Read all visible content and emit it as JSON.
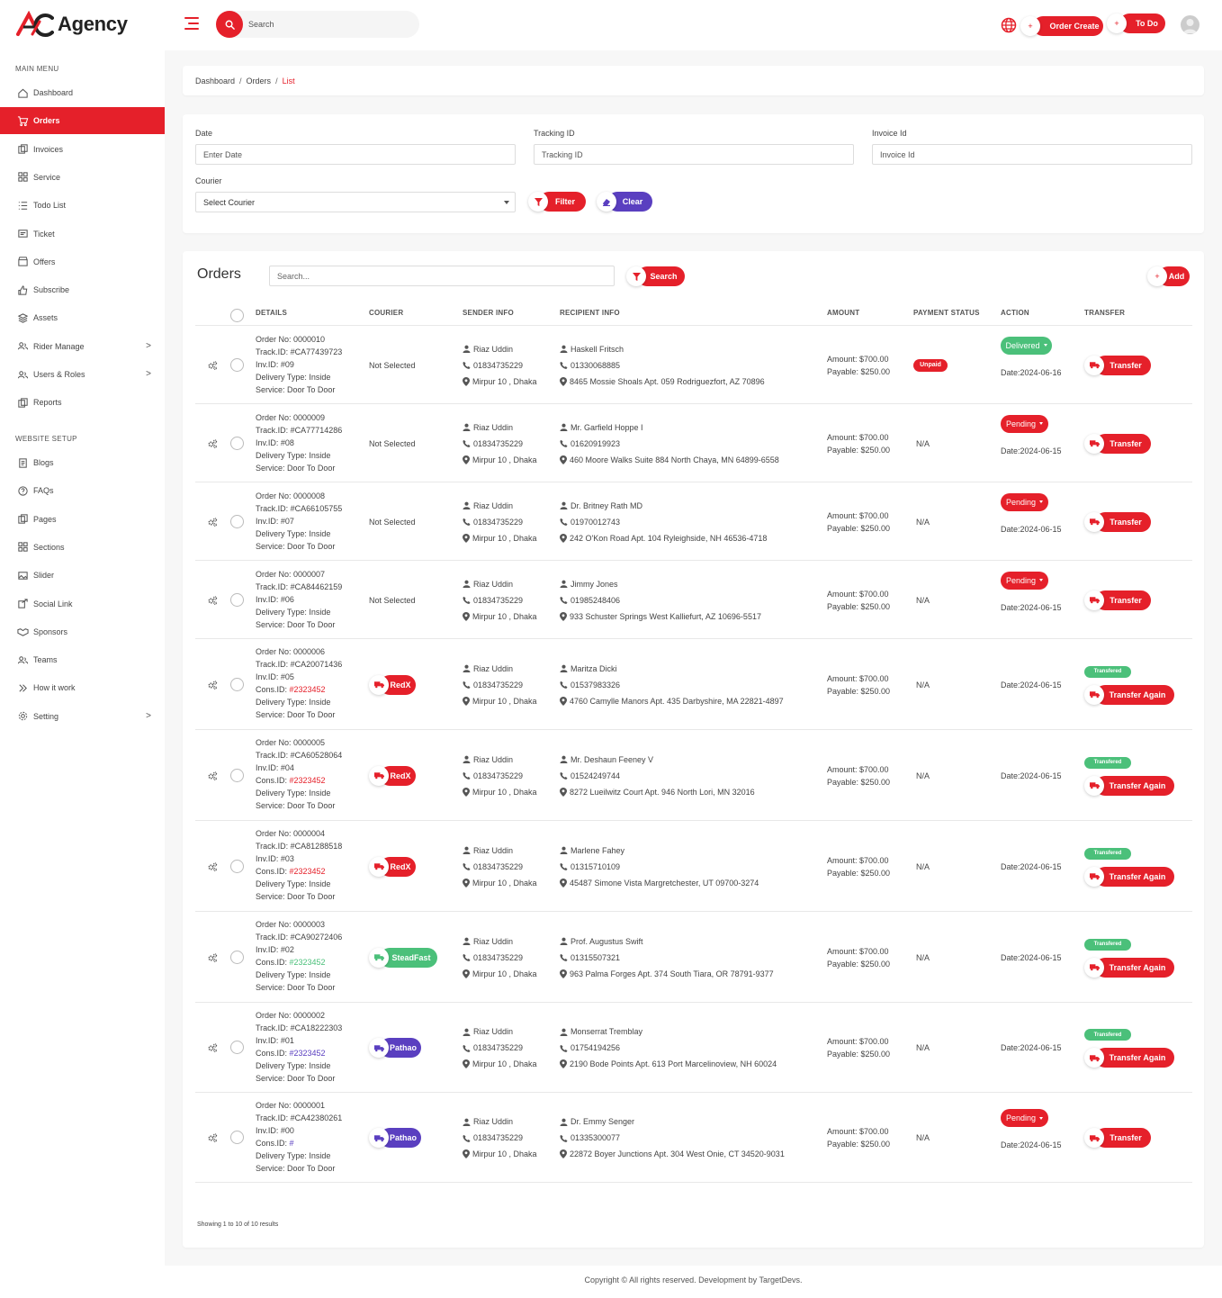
{
  "brand": {
    "name": "Agency"
  },
  "header": {
    "search_placeholder": "Search",
    "order_create_label": "Order Create",
    "todo_label": "To Do",
    "plus": "+"
  },
  "colors": {
    "accent": "#e5202a",
    "green": "#4bc07a",
    "purple": "#5a3fc0"
  },
  "sidebar": {
    "main_menu_label": "MAIN MENU",
    "website_setup_label": "WEBSITE SETUP",
    "main_items": [
      {
        "label": "Dashboard",
        "icon": "home-icon"
      },
      {
        "label": "Orders",
        "icon": "cart-icon",
        "active": true
      },
      {
        "label": "Invoices",
        "icon": "invoice-icon"
      },
      {
        "label": "Service",
        "icon": "grid-icon"
      },
      {
        "label": "Todo List",
        "icon": "list-icon"
      },
      {
        "label": "Ticket",
        "icon": "ticket-icon"
      },
      {
        "label": "Offers",
        "icon": "store-icon"
      },
      {
        "label": "Subscribe",
        "icon": "thumbs-up-icon"
      },
      {
        "label": "Assets",
        "icon": "layers-icon"
      },
      {
        "label": "Rider Manage",
        "icon": "users-icon",
        "chevron": ">"
      },
      {
        "label": "Users & Roles",
        "icon": "users-icon",
        "chevron": ">"
      },
      {
        "label": "Reports",
        "icon": "report-icon"
      }
    ],
    "setup_items": [
      {
        "label": "Blogs",
        "icon": "document-icon"
      },
      {
        "label": "FAQs",
        "icon": "question-icon"
      },
      {
        "label": "Pages",
        "icon": "pages-icon"
      },
      {
        "label": "Sections",
        "icon": "grid-icon"
      },
      {
        "label": "Slider",
        "icon": "image-icon"
      },
      {
        "label": "Social Link",
        "icon": "share-icon"
      },
      {
        "label": "Sponsors",
        "icon": "handshake-icon"
      },
      {
        "label": "Teams",
        "icon": "users-icon"
      },
      {
        "label": "How it work",
        "icon": "double-chevron-icon"
      },
      {
        "label": "Setting",
        "icon": "gear-icon",
        "chevron": ">"
      }
    ]
  },
  "breadcrumb": {
    "items": [
      "Dashboard",
      "Orders",
      "List"
    ],
    "sep": "/"
  },
  "filters": {
    "date_label": "Date",
    "date_placeholder": "Enter Date",
    "tracking_label": "Tracking ID",
    "tracking_placeholder": "Tracking ID",
    "invoice_label": "Invoice Id",
    "invoice_placeholder": "Invoice Id",
    "courier_label": "Courier",
    "courier_value": "Select Courier",
    "filter_label": "Filter",
    "clear_label": "Clear"
  },
  "orders": {
    "title": "Orders",
    "search_placeholder": "Search...",
    "search_label": "Search",
    "add_label": "Add",
    "columns": [
      "DETAILS",
      "COURIER",
      "SENDER INFO",
      "RECIPIENT INFO",
      "AMOUNT",
      "PAYMENT STATUS",
      "ACTION",
      "TRANSFER"
    ],
    "rows": [
      {
        "order": "Order No: 0000010",
        "track": "Track.ID: #CA77439723",
        "inv": "Inv.ID: #09",
        "cons": null,
        "cons_val": null,
        "delivery": "Delivery Type: Inside",
        "service": "Service: Door To Door",
        "courier": "Not Selected",
        "courier_kind": "none",
        "sender": "Riaz Uddin",
        "sender_phone": "01834735229",
        "sender_addr": "Mirpur 10 , Dhaka",
        "recipient": "Haskell Fritsch",
        "recipient_phone": "01330068885",
        "recipient_addr": "8465 Mossie Shoals Apt. 059 Rodriguezfort, AZ 70896",
        "amount": "Amount: $700.00",
        "payable": "Payable: $250.00",
        "payment": "Unpaid",
        "payment_kind": "badge",
        "status": "Delivered",
        "status_kind": "green",
        "date": "Date:2024-06-16",
        "transfer": "Transfer",
        "transferred": null
      },
      {
        "order": "Order No: 0000009",
        "track": "Track.ID: #CA77714286",
        "inv": "Inv.ID: #08",
        "cons": null,
        "cons_val": null,
        "delivery": "Delivery Type: Inside",
        "service": "Service: Door To Door",
        "courier": "Not Selected",
        "courier_kind": "none",
        "sender": "Riaz Uddin",
        "sender_phone": "01834735229",
        "sender_addr": "Mirpur 10 , Dhaka",
        "recipient": "Mr. Garfield Hoppe I",
        "recipient_phone": "01620919923",
        "recipient_addr": "460 Moore Walks Suite 884 North Chaya, MN 64899-6558",
        "amount": "Amount: $700.00",
        "payable": "Payable: $250.00",
        "payment": "N/A",
        "payment_kind": "text",
        "status": "Pending",
        "status_kind": "red",
        "date": "Date:2024-06-15",
        "transfer": "Transfer",
        "transferred": null
      },
      {
        "order": "Order No: 0000008",
        "track": "Track.ID: #CA66105755",
        "inv": "Inv.ID: #07",
        "cons": null,
        "cons_val": null,
        "delivery": "Delivery Type: Inside",
        "service": "Service: Door To Door",
        "courier": "Not Selected",
        "courier_kind": "none",
        "sender": "Riaz Uddin",
        "sender_phone": "01834735229",
        "sender_addr": "Mirpur 10 , Dhaka",
        "recipient": "Dr. Britney Rath MD",
        "recipient_phone": "01970012743",
        "recipient_addr": "242 O'Kon Road Apt. 104 Ryleighside, NH 46536-4718",
        "amount": "Amount: $700.00",
        "payable": "Payable: $250.00",
        "payment": "N/A",
        "payment_kind": "text",
        "status": "Pending",
        "status_kind": "red",
        "date": "Date:2024-06-15",
        "transfer": "Transfer",
        "transferred": null
      },
      {
        "order": "Order No: 0000007",
        "track": "Track.ID: #CA84462159",
        "inv": "Inv.ID: #06",
        "cons": null,
        "cons_val": null,
        "delivery": "Delivery Type: Inside",
        "service": "Service: Door To Door",
        "courier": "Not Selected",
        "courier_kind": "none",
        "sender": "Riaz Uddin",
        "sender_phone": "01834735229",
        "sender_addr": "Mirpur 10 , Dhaka",
        "recipient": "Jimmy Jones",
        "recipient_phone": "01985248406",
        "recipient_addr": "933 Schuster Springs West Kalliefurt, AZ 10696-5517",
        "amount": "Amount: $700.00",
        "payable": "Payable: $250.00",
        "payment": "N/A",
        "payment_kind": "text",
        "status": "Pending",
        "status_kind": "red",
        "date": "Date:2024-06-15",
        "transfer": "Transfer",
        "transferred": null
      },
      {
        "order": "Order No: 0000006",
        "track": "Track.ID: #CA20071436",
        "inv": "Inv.ID: #05",
        "cons": "Cons.ID: ",
        "cons_val": "#2323452",
        "delivery": "Delivery Type: Inside",
        "service": "Service: Door To Door",
        "courier": "RedX",
        "courier_kind": "red",
        "sender": "Riaz Uddin",
        "sender_phone": "01834735229",
        "sender_addr": "Mirpur 10 , Dhaka",
        "recipient": "Maritza Dicki",
        "recipient_phone": "01537983326",
        "recipient_addr": "4760 Camylle Manors Apt. 435 Darbyshire, MA 22821-4897",
        "amount": "Amount: $700.00",
        "payable": "Payable: $250.00",
        "payment": "N/A",
        "payment_kind": "text",
        "status": null,
        "status_kind": null,
        "date": "Date:2024-06-15",
        "transfer": "Transfer Again",
        "transferred": "Transfered"
      },
      {
        "order": "Order No: 0000005",
        "track": "Track.ID: #CA60528064",
        "inv": "Inv.ID: #04",
        "cons": "Cons.ID: ",
        "cons_val": "#2323452",
        "delivery": "Delivery Type: Inside",
        "service": "Service: Door To Door",
        "courier": "RedX",
        "courier_kind": "red",
        "sender": "Riaz Uddin",
        "sender_phone": "01834735229",
        "sender_addr": "Mirpur 10 , Dhaka",
        "recipient": "Mr. Deshaun Feeney V",
        "recipient_phone": "01524249744",
        "recipient_addr": "8272 Lueilwitz Court Apt. 946 North Lori, MN 32016",
        "amount": "Amount: $700.00",
        "payable": "Payable: $250.00",
        "payment": "N/A",
        "payment_kind": "text",
        "status": null,
        "status_kind": null,
        "date": "Date:2024-06-15",
        "transfer": "Transfer Again",
        "transferred": "Transfered"
      },
      {
        "order": "Order No: 0000004",
        "track": "Track.ID: #CA81288518",
        "inv": "Inv.ID: #03",
        "cons": "Cons.ID: ",
        "cons_val": "#2323452",
        "delivery": "Delivery Type: Inside",
        "service": "Service: Door To Door",
        "courier": "RedX",
        "courier_kind": "red",
        "sender": "Riaz Uddin",
        "sender_phone": "01834735229",
        "sender_addr": "Mirpur 10 , Dhaka",
        "recipient": "Marlene Fahey",
        "recipient_phone": "01315710109",
        "recipient_addr": "45487 Simone Vista Margretchester, UT 09700-3274",
        "amount": "Amount: $700.00",
        "payable": "Payable: $250.00",
        "payment": "N/A",
        "payment_kind": "text",
        "status": null,
        "status_kind": null,
        "date": "Date:2024-06-15",
        "transfer": "Transfer Again",
        "transferred": "Transfered"
      },
      {
        "order": "Order No: 0000003",
        "track": "Track.ID: #CA90272406",
        "inv": "Inv.ID: #02",
        "cons": "Cons.ID: ",
        "cons_val": "#2323452",
        "delivery": "Delivery Type: Inside",
        "service": "Service: Door To Door",
        "courier": "SteadFast",
        "courier_kind": "green",
        "sender": "Riaz Uddin",
        "sender_phone": "01834735229",
        "sender_addr": "Mirpur 10 , Dhaka",
        "recipient": "Prof. Augustus Swift",
        "recipient_phone": "01315507321",
        "recipient_addr": "963 Palma Forges Apt. 374 South Tiara, OR 78791-9377",
        "amount": "Amount: $700.00",
        "payable": "Payable: $250.00",
        "payment": "N/A",
        "payment_kind": "text",
        "status": null,
        "status_kind": null,
        "date": "Date:2024-06-15",
        "transfer": "Transfer Again",
        "transferred": "Transfered"
      },
      {
        "order": "Order No: 0000002",
        "track": "Track.ID: #CA18222303",
        "inv": "Inv.ID: #01",
        "cons": "Cons.ID: ",
        "cons_val": "#2323452",
        "delivery": "Delivery Type: Inside",
        "service": "Service: Door To Door",
        "courier": "Pathao",
        "courier_kind": "purple",
        "sender": "Riaz Uddin",
        "sender_phone": "01834735229",
        "sender_addr": "Mirpur 10 , Dhaka",
        "recipient": "Monserrat Tremblay",
        "recipient_phone": "01754194256",
        "recipient_addr": "2190 Bode Points Apt. 613 Port Marcelinoview, NH 60024",
        "amount": "Amount: $700.00",
        "payable": "Payable: $250.00",
        "payment": "N/A",
        "payment_kind": "text",
        "status": null,
        "status_kind": null,
        "date": "Date:2024-06-15",
        "transfer": "Transfer Again",
        "transferred": "Transfered"
      },
      {
        "order": "Order No: 0000001",
        "track": "Track.ID: #CA42380261",
        "inv": "Inv.ID: #00",
        "cons": "Cons.ID: ",
        "cons_val": "#",
        "delivery": "Delivery Type: Inside",
        "service": "Service: Door To Door",
        "courier": "Pathao",
        "courier_kind": "purple",
        "sender": "Riaz Uddin",
        "sender_phone": "01834735229",
        "sender_addr": "Mirpur 10 , Dhaka",
        "recipient": "Dr. Emmy Senger",
        "recipient_phone": "01335300077",
        "recipient_addr": "22872 Boyer Junctions Apt. 304 West Onie, CT 34520-9031",
        "amount": "Amount: $700.00",
        "payable": "Payable: $250.00",
        "payment": "N/A",
        "payment_kind": "text",
        "status": "Pending",
        "status_kind": "red",
        "date": "Date:2024-06-15",
        "transfer": "Transfer",
        "transferred": null
      }
    ],
    "showing": "Showing 1 to 10 of 10 results"
  },
  "footer": {
    "text": "Copyright © All rights reserved. Development by TargetDevs."
  }
}
